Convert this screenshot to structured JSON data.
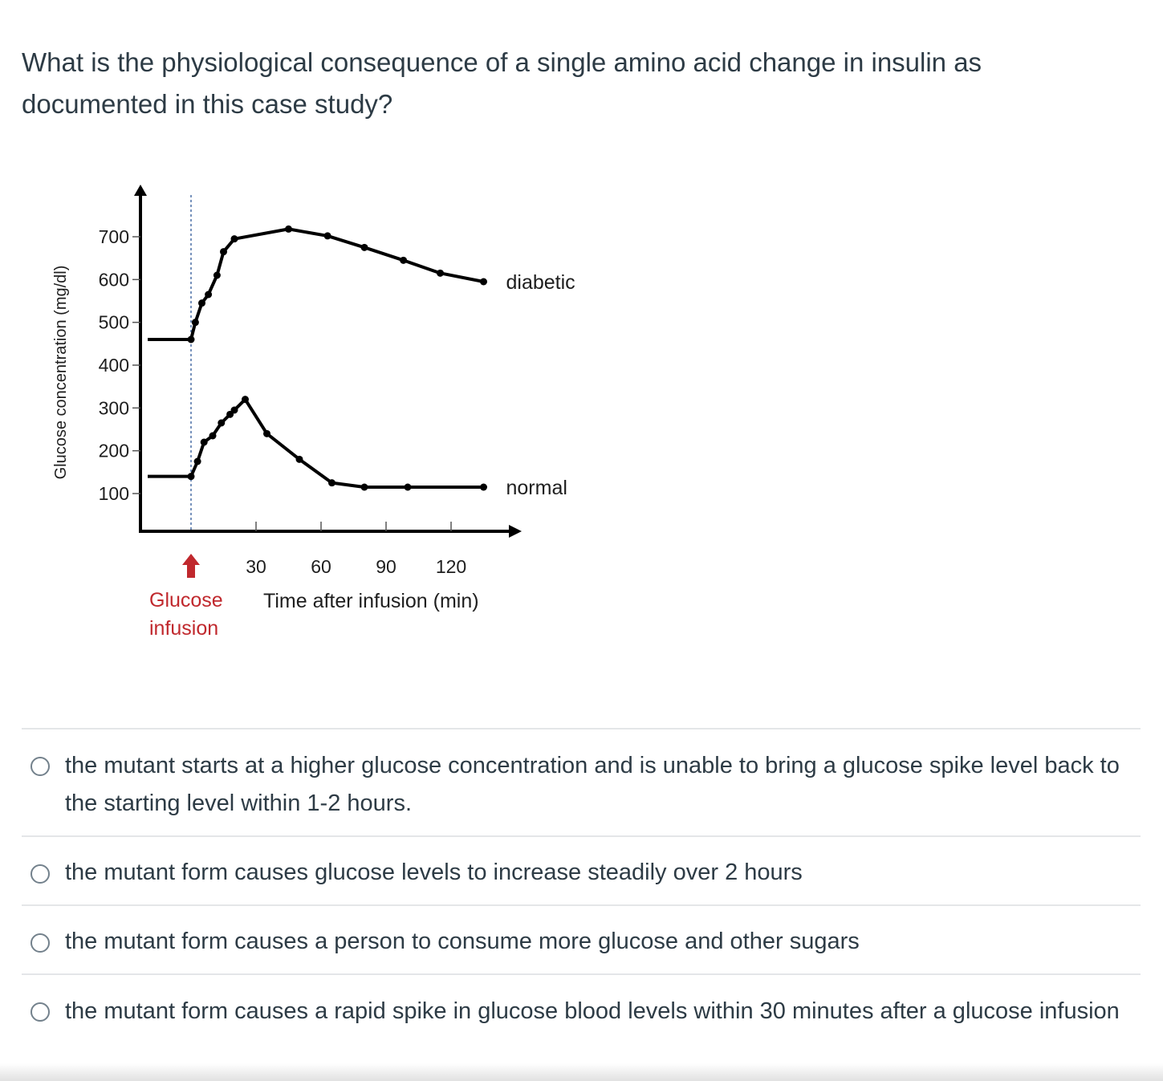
{
  "question": {
    "text": "What is the physiological consequence of a single amino acid change in insulin as documented in this case study?"
  },
  "chart_data": {
    "type": "line",
    "title": "",
    "xlabel": "Time after infusion (min)",
    "ylabel": "Glucose concentration (mg/dl)",
    "x_ticks": [
      "30",
      "60",
      "90",
      "120"
    ],
    "y_ticks": [
      "100",
      "200",
      "300",
      "400",
      "500",
      "600",
      "700"
    ],
    "ylim": [
      0,
      750
    ],
    "xlim": [
      -25,
      145
    ],
    "annotation": {
      "label_line1": "Glucose",
      "label_line2": "infusion",
      "x": 0,
      "color": "#c0282d"
    },
    "series": [
      {
        "name": "diabetic",
        "x": [
          -20,
          0,
          2,
          5,
          8,
          12,
          15,
          20,
          45,
          63,
          80,
          98,
          115,
          135
        ],
        "y": [
          460,
          460,
          500,
          545,
          565,
          610,
          665,
          695,
          718,
          702,
          675,
          645,
          615,
          595
        ]
      },
      {
        "name": "normal",
        "x": [
          -20,
          0,
          3,
          6,
          10,
          14,
          18,
          20,
          25,
          35,
          50,
          65,
          80,
          100,
          135
        ],
        "y": [
          140,
          140,
          175,
          220,
          235,
          265,
          285,
          295,
          320,
          240,
          180,
          125,
          115,
          115,
          115
        ]
      }
    ]
  },
  "answers": [
    {
      "text": "the mutant starts at a higher glucose concentration and is unable to bring a glucose spike level back to the starting level within 1-2 hours."
    },
    {
      "text": "the mutant form causes glucose levels to increase steadily over 2 hours"
    },
    {
      "text": "the mutant form causes a person to consume more glucose and other sugars"
    },
    {
      "text": "the mutant form causes a rapid spike in glucose blood levels within 30 minutes after a glucose infusion"
    }
  ]
}
